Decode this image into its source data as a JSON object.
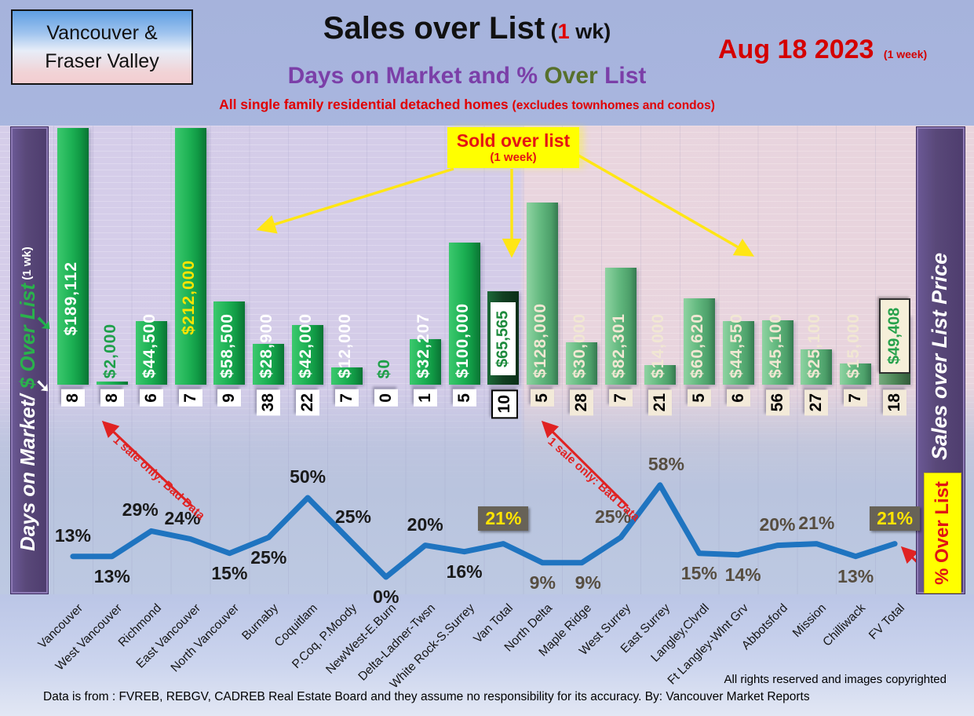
{
  "header": {
    "badge_line1": "Vancouver &",
    "badge_line2": "Fraser Valley",
    "title_main": "Sales over List",
    "title_paren_open": " (",
    "title_one": "1",
    "title_paren_close": " wk)",
    "subtitle_part1": "Days on Market and % ",
    "subtitle_part2": "Over",
    "subtitle_part3": " List",
    "tagline_main": "All single family residential detached homes ",
    "tagline_paren": "(excludes townhomes and condos)",
    "date_main": "Aug 18  2023",
    "date_sub": "(1 week)"
  },
  "left_axis": {
    "label_dom": "Days on Market/ ",
    "label_dollar": "$ Over List",
    "label_wk": " (1 wk)"
  },
  "right_axis": {
    "label": "Sales over List Price",
    "pct_box_label": "% Over List"
  },
  "callout": {
    "line1": "Sold over list",
    "line2": "(1 week)"
  },
  "bad_data_note": "1 sale only: Bad Data",
  "icons": {
    "axis_arrow": "➘"
  },
  "footer": {
    "rights": "All rights reserved and  images copyrighted",
    "source": "Data is from : FVREB, REBGV, CADREB Real Estate Board and they assume no responsibility for its accuracy. By: Vancouver Market Reports"
  },
  "chart_data": {
    "type": "combo-bar-line",
    "title": "Sales over List (1 wk) — Days on Market and % Over List",
    "categories": [
      "Vancouver",
      "West Vancouver",
      "Richmond",
      "East Vancouver",
      "North Vancouver",
      "Burnaby",
      "Coquitlam",
      "P.Coq, P.Moody",
      "NewWest-E.Burn",
      "Delta-Ladner-Twsn",
      "White Rock-S.Surrey",
      "Van Total",
      "North Delta",
      "Maple Ridge",
      "West Surrey",
      "East Surrey",
      "Langley,Clvrdl",
      "Ft Langley-Wlnt Grv",
      "Abbotsford",
      "Mission",
      "Chilliwack",
      "FV Total"
    ],
    "series": [
      {
        "name": "$ Over List (1 week)",
        "type": "bar",
        "values": [
          189112,
          2000,
          44500,
          212000,
          58500,
          28900,
          42000,
          12000,
          0,
          32207,
          100000,
          65565,
          128000,
          30000,
          82301,
          14000,
          60620,
          44550,
          45100,
          25100,
          15000,
          49408
        ],
        "labels": [
          "$189,112",
          "$2,000",
          "$44,500",
          "$212,000",
          "$58,500",
          "$28,900",
          "$42,000",
          "$12,000",
          "$0",
          "$32,207",
          "$100,000",
          "$65,565",
          "$128,000",
          "$30,000",
          "$82,301",
          "$14,000",
          "$60,620",
          "$44,550",
          "$45,100",
          "$25,100",
          "$15,000",
          "$49,408"
        ]
      },
      {
        "name": "Days on Market",
        "type": "value-labels",
        "values": [
          8,
          8,
          6,
          7,
          9,
          38,
          22,
          7,
          0,
          1,
          5,
          10,
          5,
          28,
          7,
          21,
          5,
          6,
          56,
          27,
          7,
          18
        ]
      },
      {
        "name": "% Over List",
        "type": "line",
        "values": [
          13,
          13,
          29,
          24,
          15,
          25,
          50,
          25,
          0,
          20,
          16,
          21,
          9,
          9,
          25,
          58,
          15,
          14,
          20,
          21,
          13,
          21
        ],
        "labels": [
          "13%",
          "13%",
          "29%",
          "24%",
          "15%",
          "25%",
          "50%",
          "25%",
          "0%",
          "20%",
          "16%",
          "21%",
          "9%",
          "9%",
          "25%",
          "58%",
          "15%",
          "14%",
          "20%",
          "21%",
          "13%",
          "21%"
        ]
      }
    ],
    "region_split_index": 12,
    "total_indices": [
      11,
      21
    ],
    "grid": "horizontal",
    "legend": "none",
    "ylim_dollars": [
      0,
      180000
    ],
    "ylim_pct": [
      0,
      80
    ],
    "pct_label_side": [
      "above",
      "below",
      "above",
      "above",
      "below",
      "below",
      "above",
      "above",
      "below",
      "above",
      "below",
      "box",
      "below",
      "below",
      "above",
      "above",
      "below",
      "below",
      "above",
      "above",
      "below",
      "box"
    ],
    "pct_label_dx": [
      0,
      0,
      -14,
      -10,
      0,
      0,
      0,
      8,
      0,
      0,
      0,
      0,
      0,
      8,
      -10,
      8,
      0,
      6,
      0,
      0,
      0,
      0
    ],
    "colors": {
      "bar_van": "#1db154",
      "bar_fv": "#62b87e",
      "bar_total_dark": "#123f22",
      "line": "#1f74c0",
      "pct_highlight_bg": "#676257",
      "pct_highlight_text": "#ffe400",
      "callout_bg": "#ffff00",
      "annotation_red": "#e02222",
      "sidebar_purple": "#594879"
    }
  }
}
